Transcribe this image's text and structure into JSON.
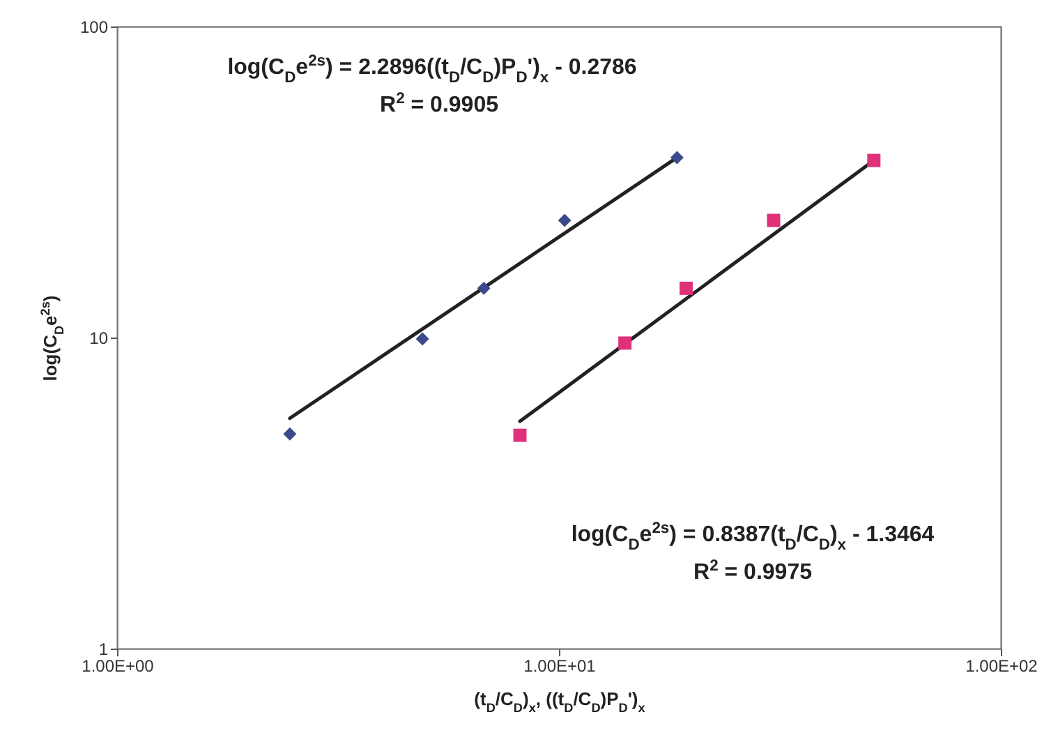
{
  "chart_data": {
    "type": "scatter",
    "xlabel": "(t$_{D}$/C$_{D}$)$_{x}$, ((t$_{D}$/C$_{D}$)P$_{D}$')$_{x}$",
    "ylabel": "log(C$_{D}$e$^{2s}$)",
    "log": "xy",
    "grid": false,
    "xlim": [
      1,
      100
    ],
    "ylim": [
      1,
      100
    ],
    "xticks": [
      {
        "value": 1,
        "label": "1.00E+00"
      },
      {
        "value": 10,
        "label": "1.00E+01"
      },
      {
        "value": 100,
        "label": "1.00E+02"
      }
    ],
    "yticks": [
      1,
      10,
      100
    ],
    "series": [
      {
        "type": "line",
        "color": "#222222",
        "x": [
          2.46,
          18.5
        ],
        "values": [
          5.5,
          37.9
        ]
      },
      {
        "type": "line",
        "color": "#222222",
        "x": [
          8.16,
          51.6
        ],
        "values": [
          5.38,
          37.1
        ]
      },
      {
        "marker": "diamond",
        "color": "#3a4a8c",
        "x": [
          2.46,
          4.91,
          6.76,
          10.3,
          18.5
        ],
        "values": [
          4.9,
          9.9,
          14.4,
          23.8,
          37.9
        ]
      },
      {
        "marker": "square",
        "color": "#e0307a",
        "x": [
          8.16,
          14.1,
          19.4,
          30.6,
          51.6
        ],
        "values": [
          4.85,
          9.6,
          14.4,
          23.8,
          37.1
        ]
      }
    ],
    "annotations": [
      "log(C$_{D}$e$^{2s}$) = 2.2896((t$_{D}$/C$_{D}$)P$_{D}$')$_{x}$ - 0.2786",
      "R$^{2}$ = 0.9905",
      "log(C$_{D}$e$^{2s}$) = 0.8387(t$_{D}$/C$_{D}$)$_{x}$ - 1.3464",
      "R$^{2}$ = 0.9975"
    ]
  }
}
